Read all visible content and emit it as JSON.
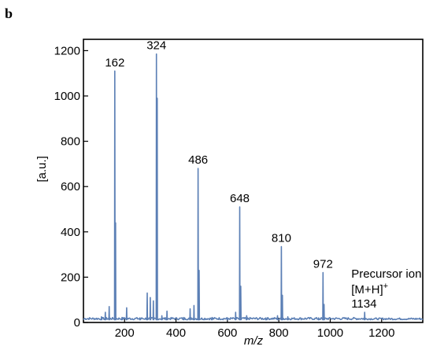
{
  "panel_label": "b",
  "chart_data": {
    "type": "line",
    "title": "",
    "xlabel": "m/z",
    "ylabel": "[a.u.]",
    "xlim": [
      40,
      1360
    ],
    "ylim": [
      0,
      1250
    ],
    "xticks": [
      200,
      400,
      600,
      800,
      1000,
      1200
    ],
    "yticks": [
      0,
      200,
      400,
      600,
      800,
      1000,
      1200
    ],
    "grid": false,
    "line_color": "#5b7fb5",
    "baseline": 12,
    "peaks": [
      {
        "x": 110,
        "y": 25
      },
      {
        "x": 125,
        "y": 45
      },
      {
        "x": 140,
        "y": 70
      },
      {
        "x": 162,
        "y": 1110
      },
      {
        "x": 165,
        "y": 440
      },
      {
        "x": 190,
        "y": 22
      },
      {
        "x": 208,
        "y": 65
      },
      {
        "x": 260,
        "y": 20
      },
      {
        "x": 288,
        "y": 130
      },
      {
        "x": 300,
        "y": 110
      },
      {
        "x": 312,
        "y": 95
      },
      {
        "x": 324,
        "y": 1185
      },
      {
        "x": 327,
        "y": 990
      },
      {
        "x": 345,
        "y": 30
      },
      {
        "x": 365,
        "y": 50
      },
      {
        "x": 430,
        "y": 22
      },
      {
        "x": 455,
        "y": 60
      },
      {
        "x": 470,
        "y": 75
      },
      {
        "x": 486,
        "y": 680
      },
      {
        "x": 490,
        "y": 230
      },
      {
        "x": 540,
        "y": 22
      },
      {
        "x": 600,
        "y": 20
      },
      {
        "x": 632,
        "y": 45
      },
      {
        "x": 648,
        "y": 510
      },
      {
        "x": 652,
        "y": 160
      },
      {
        "x": 675,
        "y": 30
      },
      {
        "x": 750,
        "y": 20
      },
      {
        "x": 795,
        "y": 30
      },
      {
        "x": 810,
        "y": 335
      },
      {
        "x": 814,
        "y": 120
      },
      {
        "x": 835,
        "y": 25
      },
      {
        "x": 955,
        "y": 20
      },
      {
        "x": 972,
        "y": 220
      },
      {
        "x": 976,
        "y": 80
      },
      {
        "x": 1134,
        "y": 45
      }
    ],
    "annotations": [
      {
        "id": "162",
        "text": "162",
        "x": 162,
        "y": 1110
      },
      {
        "id": "324",
        "text": "324",
        "x": 324,
        "y": 1185
      },
      {
        "id": "486",
        "text": "486",
        "x": 486,
        "y": 680
      },
      {
        "id": "648",
        "text": "648",
        "x": 648,
        "y": 510
      },
      {
        "id": "810",
        "text": "810",
        "x": 810,
        "y": 335
      },
      {
        "id": "972",
        "text": "972",
        "x": 972,
        "y": 220
      }
    ],
    "precursor": {
      "line1": "Precursor ion",
      "line2": "[M+H]",
      "superscript": "+",
      "line3": "1134",
      "x": 1134,
      "y": 45
    }
  }
}
